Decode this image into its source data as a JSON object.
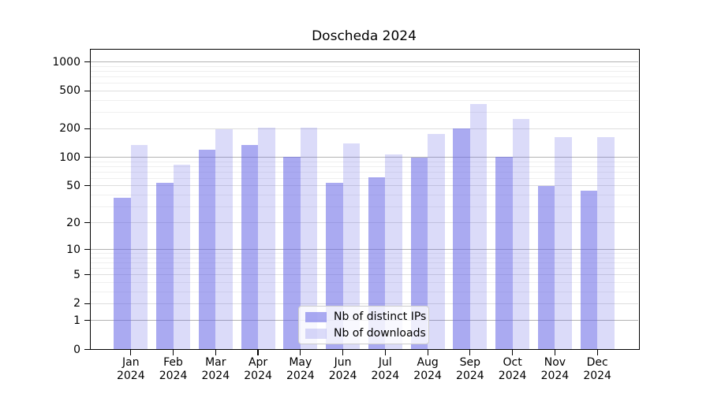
{
  "title": "Doscheda 2024",
  "legend": {
    "items": [
      {
        "label": "Nb of distinct IPs",
        "color": "rgba(100,100,230,0.55)"
      },
      {
        "label": "Nb of downloads",
        "color": "rgba(100,100,230,0.23)"
      }
    ]
  },
  "chart_data": {
    "type": "bar",
    "title": "Doscheda 2024",
    "categories": [
      "Jan 2024",
      "Feb 2024",
      "Mar 2024",
      "Apr 2024",
      "May 2024",
      "Jun 2024",
      "Jul 2024",
      "Aug 2024",
      "Sep 2024",
      "Oct 2024",
      "Nov 2024",
      "Dec 2024"
    ],
    "series": [
      {
        "name": "Nb of distinct IPs",
        "color": "rgba(100,100,230,0.55)",
        "values": [
          37,
          54,
          120,
          135,
          102,
          54,
          62,
          100,
          200,
          101,
          50,
          44
        ]
      },
      {
        "name": "Nb of downloads",
        "color": "rgba(100,100,230,0.23)",
        "values": [
          135,
          84,
          197,
          207,
          207,
          140,
          108,
          177,
          365,
          254,
          165,
          163
        ]
      }
    ],
    "xlabel": "",
    "ylabel": "",
    "y_scale": "log(1+v)",
    "y_ticks": [
      0,
      1,
      2,
      5,
      10,
      20,
      50,
      100,
      200,
      500,
      1000
    ],
    "y_decade_ticks": [
      1,
      10,
      100,
      1000
    ],
    "y_minor_ticks": [
      3,
      4,
      6,
      7,
      8,
      9,
      30,
      40,
      60,
      70,
      80,
      90,
      300,
      400,
      600,
      700,
      800,
      900
    ],
    "ylim": [
      0,
      1370
    ],
    "grid": true,
    "legend_position": "lower center"
  },
  "colors": {
    "grid_decade": "#b3b3b3",
    "grid_labeled": "#dedede",
    "grid_minor": "#efefef",
    "axis": "#000000",
    "text": "#000000",
    "background": "#ffffff"
  }
}
